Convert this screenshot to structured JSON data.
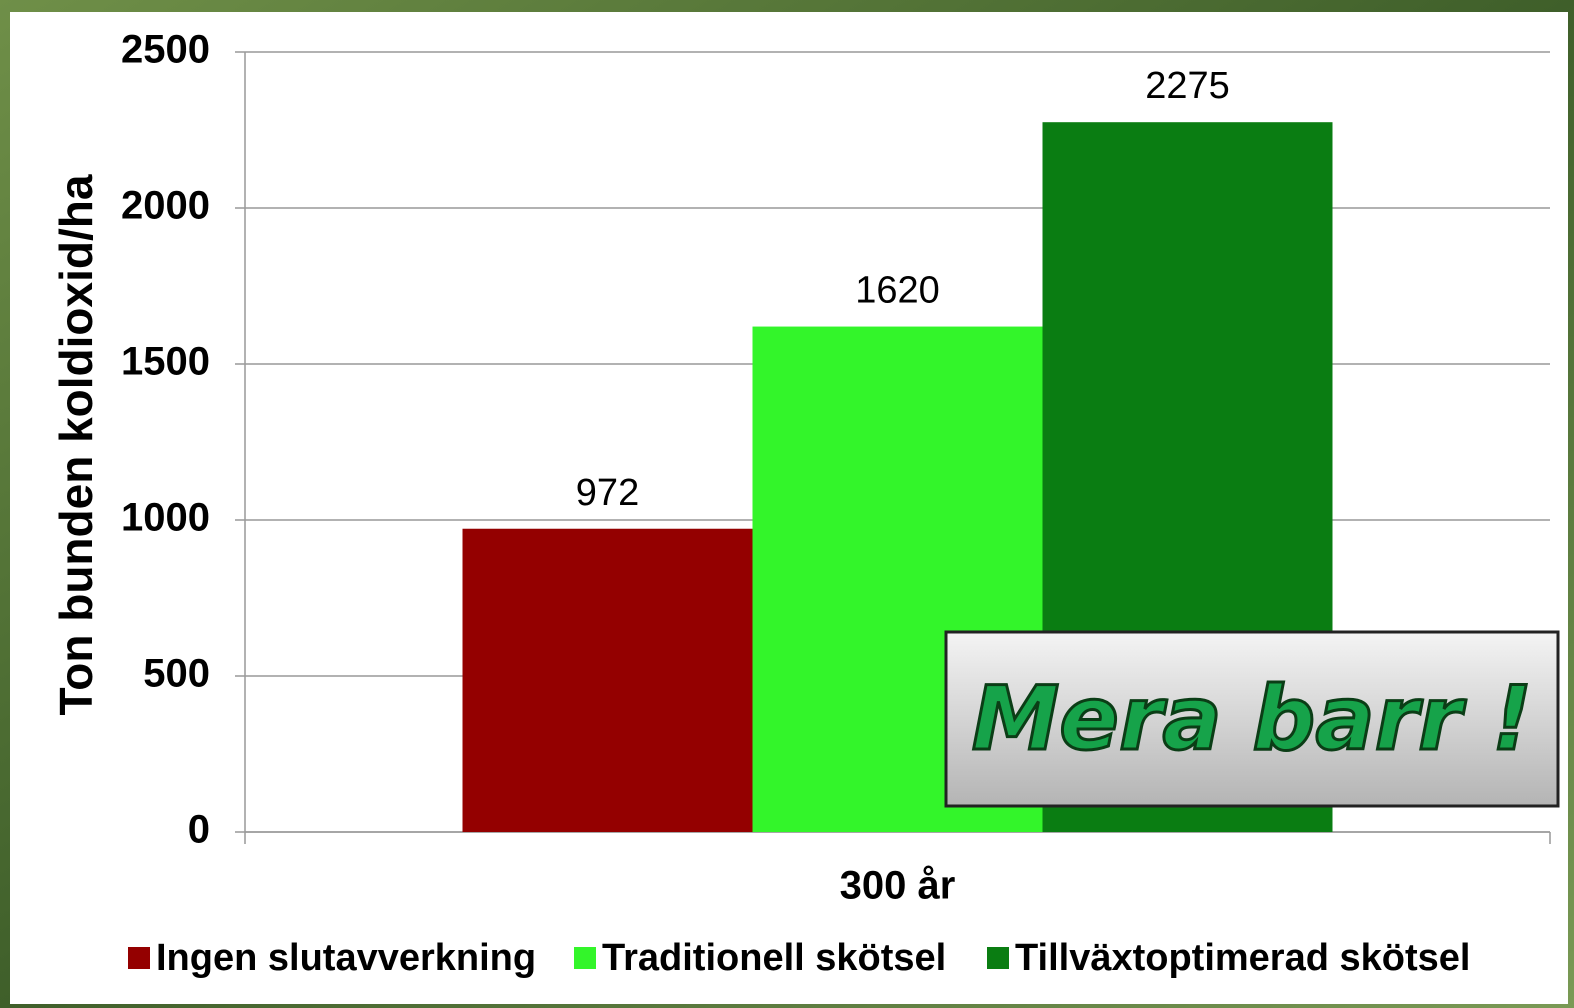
{
  "chart_data": {
    "type": "bar",
    "y_label": "Ton bunden koldioxid/ha",
    "categories": [
      "300 år"
    ],
    "series": [
      {
        "name": "Ingen slutavverkning",
        "color": "#940000",
        "values": [
          972
        ]
      },
      {
        "name": "Traditionell skötsel",
        "color": "#33f52a",
        "values": [
          1620
        ]
      },
      {
        "name": "Tillväxtoptimerad skötsel",
        "color": "#0a7d12",
        "values": [
          2275
        ]
      }
    ],
    "ylim": [
      0,
      2500
    ],
    "yticks": [
      0,
      500,
      1000,
      1500,
      2000,
      2500
    ],
    "grid": true,
    "legend": "bottom",
    "annotation": "Mera barr !"
  }
}
